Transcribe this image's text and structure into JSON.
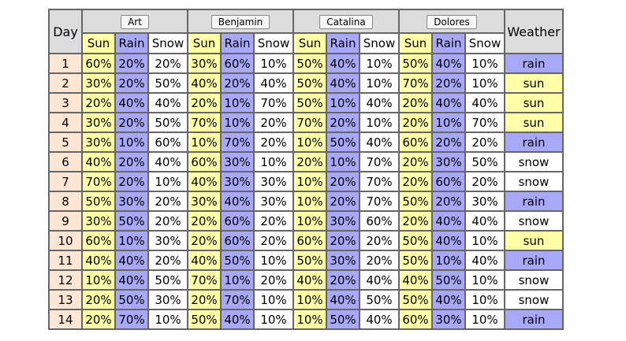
{
  "table": {
    "header": {
      "day": "Day",
      "weather": "Weather",
      "forecasters": [
        "Art",
        "Benjamin",
        "Catalina",
        "Dolores"
      ],
      "subheaders": [
        "Sun",
        "Rain",
        "Snow"
      ]
    },
    "rows": [
      {
        "day": 1,
        "forecasts": [
          [
            "60%",
            "20%",
            "20%"
          ],
          [
            "30%",
            "60%",
            "10%"
          ],
          [
            "50%",
            "40%",
            "10%"
          ],
          [
            "50%",
            "40%",
            "10%"
          ]
        ],
        "weather": "rain"
      },
      {
        "day": 2,
        "forecasts": [
          [
            "30%",
            "20%",
            "50%"
          ],
          [
            "40%",
            "20%",
            "40%"
          ],
          [
            "50%",
            "40%",
            "10%"
          ],
          [
            "70%",
            "20%",
            "10%"
          ]
        ],
        "weather": "sun"
      },
      {
        "day": 3,
        "forecasts": [
          [
            "20%",
            "40%",
            "40%"
          ],
          [
            "20%",
            "10%",
            "70%"
          ],
          [
            "50%",
            "10%",
            "40%"
          ],
          [
            "20%",
            "40%",
            "40%"
          ]
        ],
        "weather": "sun"
      },
      {
        "day": 4,
        "forecasts": [
          [
            "30%",
            "20%",
            "50%"
          ],
          [
            "70%",
            "10%",
            "20%"
          ],
          [
            "70%",
            "20%",
            "10%"
          ],
          [
            "20%",
            "10%",
            "70%"
          ]
        ],
        "weather": "sun"
      },
      {
        "day": 5,
        "forecasts": [
          [
            "30%",
            "10%",
            "60%"
          ],
          [
            "10%",
            "70%",
            "20%"
          ],
          [
            "10%",
            "50%",
            "40%"
          ],
          [
            "60%",
            "20%",
            "20%"
          ]
        ],
        "weather": "rain"
      },
      {
        "day": 6,
        "forecasts": [
          [
            "40%",
            "20%",
            "40%"
          ],
          [
            "60%",
            "30%",
            "10%"
          ],
          [
            "20%",
            "10%",
            "70%"
          ],
          [
            "20%",
            "30%",
            "50%"
          ]
        ],
        "weather": "snow"
      },
      {
        "day": 7,
        "forecasts": [
          [
            "70%",
            "20%",
            "10%"
          ],
          [
            "40%",
            "30%",
            "30%"
          ],
          [
            "10%",
            "20%",
            "70%"
          ],
          [
            "20%",
            "60%",
            "20%"
          ]
        ],
        "weather": "snow"
      },
      {
        "day": 8,
        "forecasts": [
          [
            "50%",
            "30%",
            "20%"
          ],
          [
            "30%",
            "40%",
            "30%"
          ],
          [
            "10%",
            "20%",
            "70%"
          ],
          [
            "50%",
            "20%",
            "30%"
          ]
        ],
        "weather": "rain"
      },
      {
        "day": 9,
        "forecasts": [
          [
            "30%",
            "50%",
            "20%"
          ],
          [
            "20%",
            "60%",
            "20%"
          ],
          [
            "10%",
            "30%",
            "60%"
          ],
          [
            "20%",
            "40%",
            "40%"
          ]
        ],
        "weather": "snow"
      },
      {
        "day": 10,
        "forecasts": [
          [
            "60%",
            "10%",
            "30%"
          ],
          [
            "20%",
            "60%",
            "20%"
          ],
          [
            "60%",
            "20%",
            "20%"
          ],
          [
            "50%",
            "40%",
            "10%"
          ]
        ],
        "weather": "sun"
      },
      {
        "day": 11,
        "forecasts": [
          [
            "40%",
            "40%",
            "20%"
          ],
          [
            "40%",
            "50%",
            "10%"
          ],
          [
            "50%",
            "30%",
            "20%"
          ],
          [
            "50%",
            "10%",
            "40%"
          ]
        ],
        "weather": "rain"
      },
      {
        "day": 12,
        "forecasts": [
          [
            "10%",
            "40%",
            "50%"
          ],
          [
            "70%",
            "10%",
            "20%"
          ],
          [
            "40%",
            "20%",
            "40%"
          ],
          [
            "40%",
            "50%",
            "10%"
          ]
        ],
        "weather": "snow"
      },
      {
        "day": 13,
        "forecasts": [
          [
            "20%",
            "50%",
            "30%"
          ],
          [
            "20%",
            "70%",
            "10%"
          ],
          [
            "10%",
            "40%",
            "50%"
          ],
          [
            "50%",
            "40%",
            "10%"
          ]
        ],
        "weather": "snow"
      },
      {
        "day": 14,
        "forecasts": [
          [
            "20%",
            "70%",
            "10%"
          ],
          [
            "50%",
            "40%",
            "10%"
          ],
          [
            "10%",
            "50%",
            "40%"
          ],
          [
            "60%",
            "30%",
            "10%"
          ]
        ],
        "weather": "rain"
      }
    ]
  }
}
